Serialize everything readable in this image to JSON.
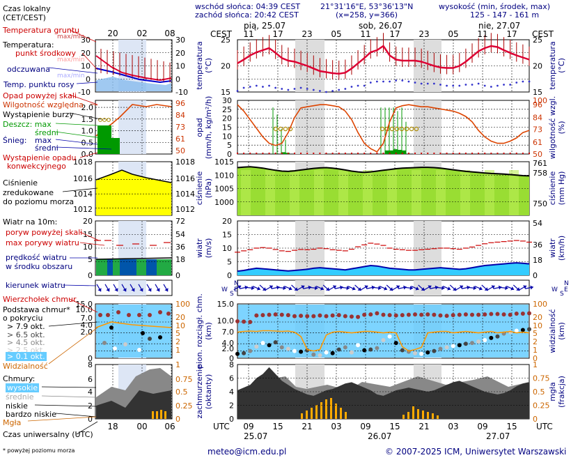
{
  "header": {
    "local_time": "Czas lokalny\n(CET/CEST)",
    "sunrise": "wschód słońca: 04:39 CEST",
    "sunset": "zachód słońca: 20:42 CEST",
    "coords": "21°31'16\"E, 53°36'13\"N",
    "grid": "(x=258, y=366)",
    "height_title": "wysokość (min, środek, max)",
    "heights": "125 - 147 - 161 m"
  },
  "top_axis": {
    "left_unit": "CEST",
    "right_unit": "CEST",
    "day_labels": [
      "pią, 25.07",
      "sob, 26.07",
      "nie, 27.07"
    ],
    "hours": [
      "11",
      "17",
      "23",
      "05",
      "11",
      "17",
      "23",
      "05",
      "11",
      "17"
    ],
    "legend_hours": [
      "20",
      "02",
      "08"
    ]
  },
  "bottom_axis": {
    "left_unit": "UTC",
    "right_unit": "UTC",
    "hours": [
      "09",
      "15",
      "21",
      "03",
      "09",
      "15",
      "21",
      "03",
      "09",
      "15"
    ],
    "dates": [
      "25.07",
      "26.07",
      "27.07"
    ],
    "legend_hours": [
      "18",
      "00",
      "06"
    ],
    "utc_label": "Czas uniwersalny (UTC)"
  },
  "legend": {
    "temp_ground": "Temperatura gruntu",
    "temp_ground_sub": "max/min",
    "temp": "Temperatura:",
    "temp_mid": "punkt środkowy",
    "temp_mid_sub": "max/min",
    "temp_feel": "odczuwana",
    "temp_feel_sub": "max/min",
    "dew": "Temp. punktu rosy",
    "gust_rain": "Opad powyżej skali",
    "humidity": "Wilgotność względna",
    "storm": "Wystąpienie burzy",
    "rain": "Deszcz: max",
    "rain_mid": "średni",
    "snow": "Śnieg:",
    "snow_max": "max",
    "snow_mid": "średni",
    "conv": "Wystąpienie opadu",
    "conv2": "konwekcyjnego",
    "pressure": "Ciśnienie",
    "pressure2": "zredukowane",
    "pressure3": "do poziomu morza",
    "wind": "Wiatr na 10m:",
    "gust_over": "poryw powyżej skali",
    "gust_max": "max porywy wiatru",
    "wind_avg": "prędkość wiatru",
    "wind_avg2": "w środku obszaru",
    "wind_dir": "kierunek wiatru",
    "cloud_top": "Wierzchołek chmur",
    "cloud_base": "Podstawa chmur*",
    "cloud_base2": "o pokryciu",
    "okt1": "> 7.9 okt.",
    "okt2": "> 6.5 okt.",
    "okt3": "> 4.5 okt.",
    "okt4": "> 2.5 okt.",
    "okt5": "> 0.1 okt.",
    "visibility": "Widzialność",
    "clouds": "Chmury:",
    "clouds_high": "wysokie",
    "clouds_mid": "średnie",
    "clouds_low": "niskie",
    "clouds_vlow": "bardzo niskie",
    "fog": "Mgła",
    "footnote": "* powyżej poziomu morza"
  },
  "footer": {
    "email": "meteo@icm.edu.pl",
    "copyright": "© 2007-2025 ICM, Uniwersytet Warszawski"
  },
  "panel_labels": {
    "temp_l": "temperatura\n(°C)",
    "temp_r": "temperatura\n(°C)",
    "rain_l": "opad\n(mm/h, kg/m²/h)",
    "rain_r": "wilgotność wzgl.\n(%)",
    "pres_l": "ciśnienie\n(hPa)",
    "pres_r": "ciśnienie\n(mm Hg)",
    "wind_l": "wiatr\n(m/s)",
    "wind_r": "wiatr\n(km/h)",
    "cb_l": "pion. rozciągł. chm.\n(km)",
    "cb_r": "widzialność\n(km)",
    "cl_l": "zachmurzenie\n(oktanty)",
    "cl_r": "mgła\n(frakcja)"
  },
  "colors": {
    "temp": "#dd0033",
    "temp_range": "#aa0000",
    "dew": "#3333cc",
    "humidity": "#dd4400",
    "rain": "#009900",
    "pressure_fill": "#99dd33",
    "wind": "#33ccff",
    "gust": "#cc0000",
    "cloud_panel": "#66ccff",
    "visibility": "#ff9900",
    "night": "#dddddd"
  },
  "chart_data": [
    {
      "type": "line",
      "title": "temperatura (°C)",
      "ylim": [
        15,
        25
      ],
      "yticks_left": [
        15,
        20,
        25
      ],
      "yticks_right": [
        15,
        20,
        25
      ],
      "series": [
        {
          "values": [
            20.5,
            21.2,
            22.0,
            22.6,
            23.0,
            23.4,
            22.5,
            21.5,
            21.0,
            20.8,
            20.4,
            20.0,
            19.5,
            19.0,
            18.8,
            18.6,
            18.5,
            18.7,
            19.5,
            20.5,
            21.5,
            22.6,
            23.0,
            23.8,
            22.0,
            21.2,
            21.0,
            21.0,
            21.0,
            20.8,
            20.4,
            20.0,
            19.7,
            19.6,
            19.6,
            20.0,
            20.8,
            21.8,
            22.8,
            23.4,
            23.8,
            23.6,
            23.0,
            22.5,
            22.0,
            21.6,
            21.2
          ]
        },
        {
          "values": [
            15.2,
            15.8,
            16.0,
            16.2,
            16.0,
            16.2,
            15.8,
            15.6,
            15.4,
            15.6,
            15.8,
            15.6,
            15.4,
            15.2,
            15.0,
            15.2,
            15.4,
            15.6,
            16.0,
            16.2,
            16.2,
            16.8,
            17.0,
            17.0,
            17.0,
            17.2,
            17.2,
            17.0,
            16.8,
            16.6,
            16.6,
            16.6,
            16.4,
            16.2,
            16.2,
            16.2,
            16.4,
            16.4,
            16.6,
            16.2,
            16.0,
            16.2,
            16.4,
            16.4,
            16.8,
            17.0,
            17.0
          ]
        }
      ]
    },
    {
      "type": "line",
      "title": "opad (mm/h, kg/m²/h) / wilgotność wzgl. (%)",
      "ylim": [
        0,
        30
      ],
      "yticks_left": [
        0,
        5,
        10,
        15,
        20,
        25,
        30
      ],
      "yticks_right": [
        50,
        61,
        73,
        84,
        96,
        100
      ],
      "series": [
        {
          "values": [
            96,
            90,
            82,
            74,
            66,
            60,
            58,
            60,
            70,
            84,
            93,
            94,
            95,
            96,
            96,
            95,
            94,
            90,
            82,
            70,
            60,
            55,
            52,
            60,
            80,
            93,
            95,
            96,
            95,
            94,
            94,
            93,
            92,
            91,
            90,
            88,
            85,
            80,
            72,
            66,
            62,
            60,
            60,
            62,
            65,
            70,
            72
          ]
        }
      ]
    },
    {
      "type": "area",
      "title": "ciśnienie (hPa)",
      "ylim": [
        995,
        1015
      ],
      "yticks_left": [
        1000,
        1005,
        1010,
        1015
      ],
      "yticks_right": [
        750,
        758,
        761
      ],
      "series": [
        {
          "values": [
            1012.8,
            1013.0,
            1013.1,
            1012.9,
            1012.6,
            1012.2,
            1011.8,
            1011.5,
            1011.4,
            1011.6,
            1011.9,
            1012.2,
            1012.5,
            1012.7,
            1012.8,
            1012.6,
            1012.3,
            1011.9,
            1011.5,
            1011.2,
            1011.0,
            1011.2,
            1011.5,
            1011.8,
            1012.1,
            1012.4,
            1012.6,
            1012.7,
            1012.8,
            1012.9,
            1012.9,
            1012.8,
            1012.6,
            1012.3,
            1012.0,
            1011.7,
            1011.4,
            1011.2,
            1011.0,
            1010.8,
            1010.6,
            1010.5,
            1010.4,
            1010.2,
            1010.0,
            1009.8,
            1009.7
          ]
        }
      ]
    },
    {
      "type": "bar",
      "title": "wiatr (m/s)",
      "ylim": [
        0,
        20
      ],
      "yticks_left": [
        0,
        5,
        10,
        15,
        20
      ],
      "yticks_right": [
        0,
        18,
        36,
        54
      ],
      "series": [
        {
          "values": [
            1.5,
            1.8,
            2.2,
            2.6,
            2.4,
            2.2,
            2.0,
            1.8,
            1.6,
            1.8,
            2.0,
            2.2,
            2.6,
            2.8,
            2.6,
            2.4,
            2.2,
            2.0,
            2.4,
            2.8,
            3.2,
            3.6,
            3.4,
            3.0,
            2.6,
            2.4,
            2.2,
            2.0,
            2.0,
            2.2,
            2.4,
            2.6,
            2.8,
            2.6,
            2.4,
            2.2,
            2.4,
            2.8,
            3.2,
            3.6,
            3.8,
            4.0,
            4.2,
            4.4,
            4.6,
            4.4,
            4.2
          ]
        },
        {
          "values": [
            8.5,
            9.0,
            9.4,
            10.0,
            10.2,
            10.0,
            9.5,
            9.0,
            8.8,
            9.2,
            9.5,
            9.4,
            9.6,
            10.0,
            9.8,
            9.4,
            9.2,
            9.0,
            9.6,
            10.5,
            11.2,
            11.8,
            11.5,
            11.0,
            10.0,
            9.6,
            9.4,
            9.2,
            9.2,
            9.4,
            9.6,
            9.8,
            10.0,
            10.0,
            9.8,
            9.6,
            10.0,
            10.4,
            11.0,
            11.6,
            12.0,
            12.2,
            12.4,
            12.6,
            12.8,
            12.6,
            12.2
          ]
        }
      ]
    },
    {
      "type": "scatter",
      "title": "pion. rozciągł. chm. (km) / widzialność (km)",
      "ylim": [
        0,
        15
      ],
      "yticks_left": [
        0,
        2.0,
        4.0,
        7.0,
        10.0,
        15.0
      ],
      "yticks_right": [
        0,
        1,
        2,
        5,
        10,
        20,
        100
      ],
      "series": [
        {
          "values": [
            10.2,
            10.1,
            10.0,
            11.8,
            11.9,
            12.0,
            12.1,
            12.0,
            11.9,
            11.6,
            11.7,
            11.6,
            11.6,
            11.8,
            11.6,
            11.8,
            11.9,
            11.6,
            11.5,
            11.4,
            12.0,
            12.1,
            12.4,
            12.0,
            11.9,
            11.8,
            11.9,
            12.0,
            12.1,
            12.0,
            12.1,
            12.0,
            11.8,
            11.7,
            11.9,
            12.0,
            12.1,
            12.0,
            12.0,
            12.1,
            12.2,
            12.2,
            12.1,
            12.0,
            12.3,
            12.3,
            12.4
          ]
        }
      ]
    },
    {
      "type": "area",
      "title": "zachmurzenie (oktanty) / mgła (frakcja)",
      "ylim": [
        0,
        8
      ],
      "yticks_left": [
        0,
        2,
        4,
        6,
        8
      ],
      "yticks_right": [
        0,
        0.25,
        0.5,
        0.75,
        1
      ],
      "series": [
        {
          "values": [
            2.2,
            2.6,
            3.0,
            4.0,
            4.6,
            5.6,
            4.6,
            3.6,
            3.0,
            2.4,
            2.0,
            1.6,
            1.4,
            1.8,
            2.2,
            2.4,
            2.8,
            3.2,
            3.4,
            3.0,
            2.6,
            2.2,
            1.6,
            1.4,
            1.8,
            2.2,
            2.4,
            2.6,
            2.4,
            2.2,
            2.0,
            2.2,
            2.6,
            3.0,
            3.4,
            3.6,
            3.2,
            2.8,
            2.4,
            2.0,
            1.8,
            1.6,
            1.8,
            2.2,
            2.8,
            3.2,
            3.4
          ]
        }
      ]
    }
  ]
}
